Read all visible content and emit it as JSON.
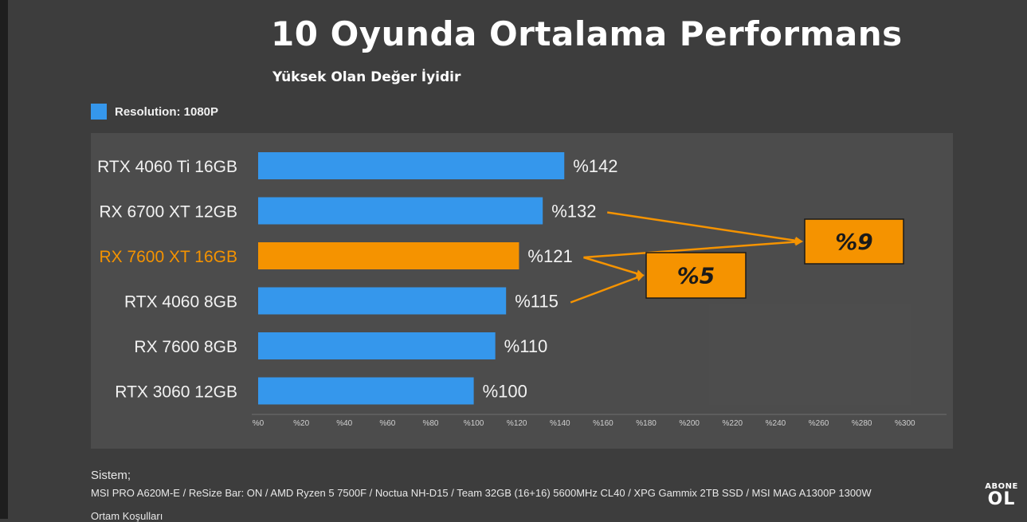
{
  "chart_data": {
    "type": "bar",
    "orientation": "horizontal",
    "title": "10 Oyunda Ortalama Performans",
    "subtitle": "Yüksek Olan Değer İyidir",
    "legend": [
      {
        "name": "Resolution: 1080P",
        "color": "#3597ec"
      }
    ],
    "categories": [
      "RTX 4060 Ti 16GB",
      "RX 6700 XT 12GB",
      "RX 7600 XT 16GB",
      "RTX 4060 8GB",
      "RX 7600 8GB",
      "RTX 3060 12GB"
    ],
    "values": [
      142,
      132,
      121,
      115,
      110,
      100
    ],
    "value_labels": [
      "%142",
      "%132",
      "%121",
      "%115",
      "%110",
      "%100"
    ],
    "highlight": "RX 7600 XT 16GB",
    "colors": {
      "bar": "#3597ec",
      "highlight": "#f59300",
      "background": "#3d3d3d"
    },
    "xlim": [
      0,
      300
    ],
    "x_ticks": [
      0,
      20,
      40,
      60,
      80,
      100,
      120,
      140,
      160,
      180,
      200,
      220,
      240,
      260,
      280,
      300
    ],
    "x_tick_labels": [
      "%0",
      "%20",
      "%40",
      "%60",
      "%80",
      "%100",
      "%120",
      "%140",
      "%160",
      "%180",
      "%200",
      "%220",
      "%240",
      "%260",
      "%280",
      "%300"
    ],
    "grid": false,
    "annotations": [
      {
        "label": "%9",
        "from": [
          "RX 6700 XT 12GB",
          "RX 7600 XT 16GB"
        ]
      },
      {
        "label": "%5",
        "from": [
          "RX 7600 XT 16GB",
          "RTX 4060 8GB"
        ]
      }
    ]
  },
  "footer": {
    "heading": "Sistem;",
    "system_line": "MSI PRO A620M-E / ReSize Bar: ON / AMD Ryzen 5 7500F / Noctua NH-D15  / Team 32GB (16+16) 5600MHz CL40 / XPG Gammix 2TB SSD  /  MSI MAG A1300P 1300W",
    "note": "Ortam Koşulları"
  },
  "logo": {
    "top": "ABONE",
    "bottom": "OL"
  }
}
